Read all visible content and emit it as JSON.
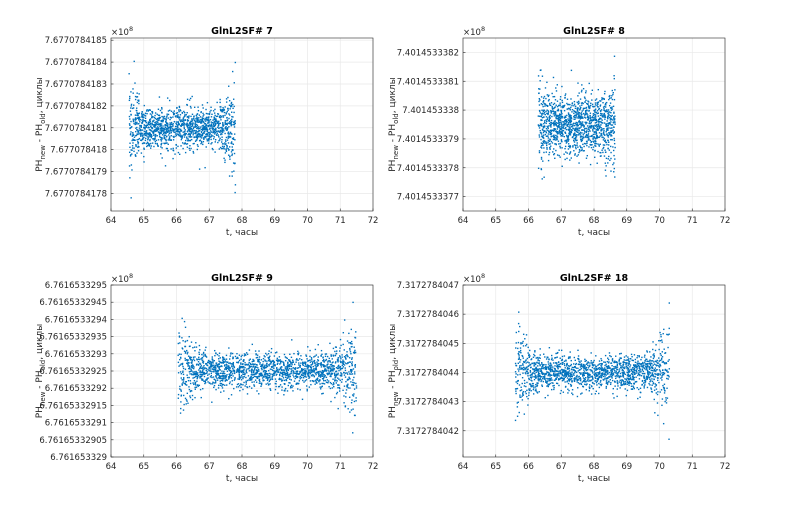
{
  "chart_data": [
    {
      "type": "scatter",
      "title": "GlnL2SF# 7",
      "xlabel": "t, часы",
      "ylabel": {
        "main": "PH",
        "sub_new": "new",
        "mid": " - PH",
        "sub_old": "old",
        "tail": ", циклы"
      },
      "exponent": "×10",
      "exponent_power": "8",
      "xlim": [
        64,
        72
      ],
      "xticks": [
        "64",
        "65",
        "66",
        "67",
        "68",
        "69",
        "70",
        "71",
        "72"
      ],
      "ylim": [
        7.67707841772,
        7.67707841851
      ],
      "yticks": [
        7.6770784178,
        7.6770784179,
        7.677078418,
        7.6770784181,
        7.6770784182,
        7.6770784183,
        7.6770784184,
        7.6770784185
      ],
      "ytick_labels": [
        "7.6770784178",
        "7.6770784179",
        "7.677078418",
        "7.6770784181",
        "7.6770784182",
        "7.6770784183",
        "7.6770784184",
        "7.6770784185"
      ],
      "grid": true,
      "series": {
        "x_range": [
          64.55,
          67.8
        ],
        "center": 7.6770784181,
        "sd": 4.5e-11,
        "edge_gain": 2.2,
        "count": 1400,
        "color": "#0072BD"
      }
    },
    {
      "type": "scatter",
      "title": "GlnL2SF# 8",
      "xlabel": "t, часы",
      "ylabel": {
        "main": "PH",
        "sub_new": "new",
        "mid": " - PH",
        "sub_old": "old",
        "tail": ", циклы"
      },
      "exponent": "×10",
      "exponent_power": "8",
      "xlim": [
        64,
        72
      ],
      "xticks": [
        "64",
        "65",
        "66",
        "67",
        "68",
        "69",
        "70",
        "71",
        "72"
      ],
      "ylim": [
        7.40145333765,
        7.40145333825
      ],
      "yticks": [
        7.4014533377,
        7.4014533378,
        7.4014533379,
        7.401453338,
        7.4014533381,
        7.4014533382
      ],
      "ytick_labels": [
        "7.4014533377",
        "7.4014533378",
        "7.4014533379",
        "7.401453338",
        "7.4014533381",
        "7.4014533382"
      ],
      "grid": true,
      "series": {
        "x_range": [
          66.3,
          68.65
        ],
        "center": 7.40145333795,
        "sd": 5e-11,
        "edge_gain": 1.0,
        "count": 1300,
        "color": "#0072BD"
      }
    },
    {
      "type": "scatter",
      "title": "GlnL2SF# 9",
      "xlabel": "t, часы",
      "ylabel": {
        "main": "PH",
        "sub_new": "new",
        "mid": " - PH",
        "sub_old": "old",
        "tail": ", циклы"
      },
      "exponent": "×10",
      "exponent_power": "8",
      "xlim": [
        64,
        72
      ],
      "xticks": [
        "64",
        "65",
        "66",
        "67",
        "68",
        "69",
        "70",
        "71",
        "72"
      ],
      "ylim": [
        6.761653329,
        6.7616533295
      ],
      "yticks": [
        6.761653329,
        6.76165332905,
        6.7616533291,
        6.76165332915,
        6.7616533292,
        6.76165332925,
        6.7616533293,
        6.76165332935,
        6.7616533294,
        6.76165332945,
        6.7616533295
      ],
      "ytick_labels": [
        "6.761653329",
        "6.76165332905",
        "6.7616533291",
        "6.76165332915",
        "6.7616533292",
        "6.76165332925",
        "6.7616533293",
        "6.76165332935",
        "6.7616533294",
        "6.76165332945",
        "6.7616533295"
      ],
      "grid": true,
      "series": {
        "x_range": [
          66.05,
          71.5
        ],
        "center": 6.76165332925,
        "sd": 2.5e-11,
        "edge_gain": 2.6,
        "count": 1800,
        "color": "#0072BD"
      }
    },
    {
      "type": "scatter",
      "title": "GlnL2SF# 18",
      "xlabel": "t, часы",
      "ylabel": {
        "main": "PH",
        "sub_new": "new",
        "mid": " - PH",
        "sub_old": "old",
        "tail": ", циклы"
      },
      "exponent": "×10",
      "exponent_power": "8",
      "xlim": [
        64,
        72
      ],
      "xticks": [
        "64",
        "65",
        "66",
        "67",
        "68",
        "69",
        "70",
        "71",
        "72"
      ],
      "ylim": [
        7.31727840411,
        7.3172784047
      ],
      "yticks": [
        7.3172784042,
        7.3172784043,
        7.3172784044,
        7.3172784045,
        7.3172784046,
        7.3172784047
      ],
      "ytick_labels": [
        "7.3172784042",
        "7.3172784043",
        "7.3172784044",
        "7.3172784045",
        "7.3172784046",
        "7.3172784047"
      ],
      "grid": true,
      "series": {
        "x_range": [
          65.6,
          70.3
        ],
        "center": 7.3172784044,
        "sd": 2.8e-11,
        "edge_gain": 2.8,
        "count": 1600,
        "color": "#0072BD"
      }
    }
  ]
}
